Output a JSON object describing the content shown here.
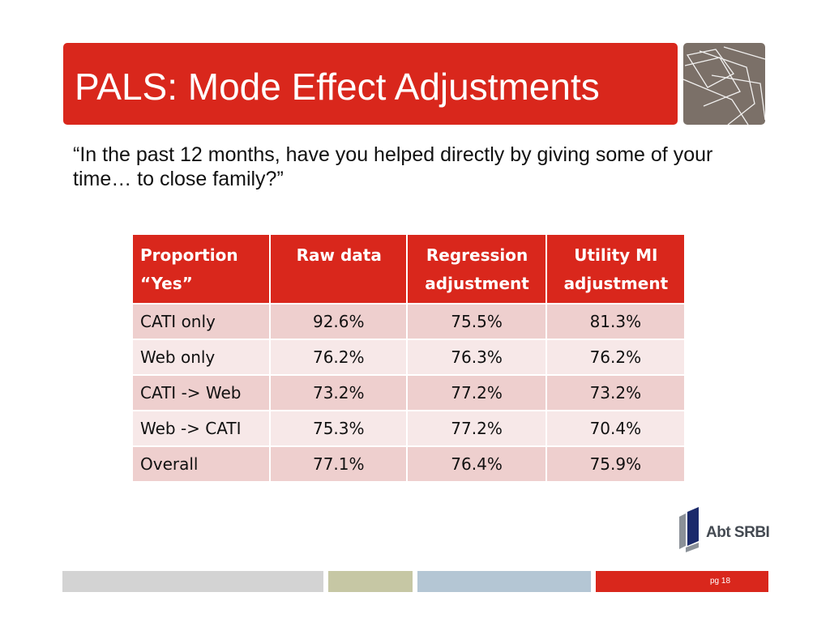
{
  "slide": {
    "title": "PALS: Mode Effect Adjustments",
    "question": "“In the past 12 months, have you helped directly by giving some of your time… to close family?”"
  },
  "table": {
    "headers": [
      "Proportion “Yes”",
      "Raw data",
      "Regression adjustment",
      "Utility MI adjustment"
    ],
    "rows": [
      [
        "CATI only",
        "92.6%",
        "75.5%",
        "81.3%"
      ],
      [
        "Web only",
        "76.2%",
        "76.3%",
        "76.2%"
      ],
      [
        "CATI -> Web",
        "73.2%",
        "77.2%",
        "73.2%"
      ],
      [
        "Web -> CATI",
        "75.3%",
        "77.2%",
        "70.4%"
      ],
      [
        "Overall",
        "77.1%",
        "76.4%",
        "75.9%"
      ]
    ]
  },
  "logo": {
    "text": "Abt SRBI",
    "icon": "abt-srbi-logo-icon"
  },
  "footer": {
    "page_label": "pg 18"
  },
  "colors": {
    "accent_red": "#d9271c",
    "deco_gray": "#7b7068",
    "row_odd": "#eecfce",
    "row_even": "#f7e8e8"
  }
}
